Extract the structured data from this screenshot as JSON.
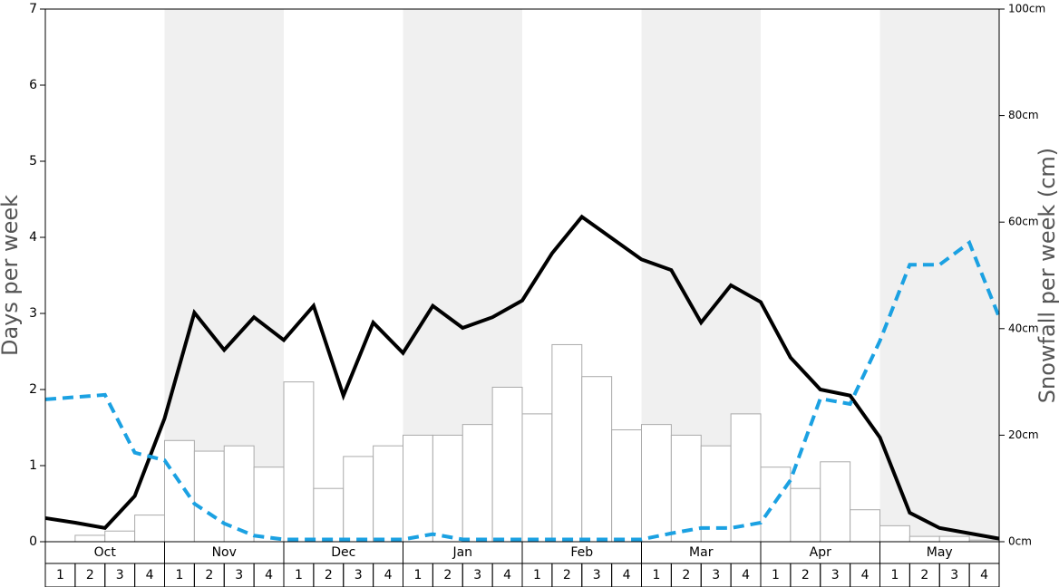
{
  "chart_data": {
    "type": "bar",
    "ylabel": "Days per week",
    "y2label": "Snowfall per week (cm)",
    "months": [
      "Oct",
      "Nov",
      "Dec",
      "Jan",
      "Feb",
      "Mar",
      "Apr",
      "May"
    ],
    "weeks": [
      "1",
      "2",
      "3",
      "4"
    ],
    "ylim": [
      0,
      7
    ],
    "yticks": [
      0,
      1,
      2,
      3,
      4,
      5,
      6,
      7
    ],
    "y2lim": [
      0,
      100
    ],
    "y2ticks": [
      {
        "value": 0,
        "label": "0cm"
      },
      {
        "value": 20,
        "label": "20cm"
      },
      {
        "value": 40,
        "label": "40cm"
      },
      {
        "value": 60,
        "label": "60cm"
      },
      {
        "value": 80,
        "label": "80cm"
      },
      {
        "value": 100,
        "label": "100cm"
      }
    ],
    "xlim": [
      0,
      32
    ],
    "series": [
      {
        "type": "bar",
        "axis": "y2",
        "color": "#ffffff",
        "values": [
          0,
          1.2,
          2,
          5,
          19,
          17,
          18,
          14,
          30,
          10,
          16,
          18,
          20,
          20,
          22,
          29,
          24,
          37,
          31,
          21,
          22,
          20,
          18,
          24,
          14,
          10,
          15,
          6,
          3,
          1,
          1,
          0.3
        ]
      },
      {
        "type": "line",
        "color": "#000000",
        "dashed": false,
        "x": [
          0,
          1,
          2,
          3,
          4,
          5,
          6,
          7,
          8,
          9,
          10,
          11,
          12,
          13,
          14,
          15,
          16,
          17,
          18,
          19,
          20,
          21,
          22,
          23,
          24,
          25,
          26,
          27,
          28,
          29,
          30,
          31,
          32
        ],
        "values": [
          0.31,
          0.25,
          0.18,
          0.6,
          1.62,
          3.01,
          2.52,
          2.95,
          2.65,
          3.1,
          1.92,
          2.88,
          2.48,
          3.1,
          2.81,
          2.95,
          3.17,
          3.79,
          4.27,
          3.99,
          3.71,
          3.57,
          2.88,
          3.37,
          3.15,
          2.42,
          2.0,
          1.92,
          1.37,
          0.38,
          0.18,
          0.11,
          0.04
        ]
      },
      {
        "type": "line",
        "color": "#1ba1e2",
        "dashed": true,
        "x": [
          0,
          1,
          2,
          3,
          4,
          5,
          6,
          7,
          8,
          9,
          10,
          11,
          12,
          13,
          14,
          15,
          16,
          17,
          18,
          19,
          20,
          21,
          22,
          23,
          24,
          25,
          26,
          27,
          28,
          29,
          30,
          31,
          32
        ],
        "values": [
          1.87,
          1.9,
          1.93,
          1.17,
          1.07,
          0.5,
          0.24,
          0.08,
          0.03,
          0.03,
          0.03,
          0.03,
          0.03,
          0.1,
          0.03,
          0.03,
          0.03,
          0.03,
          0.03,
          0.03,
          0.03,
          0.11,
          0.18,
          0.18,
          0.25,
          0.81,
          1.88,
          1.81,
          2.64,
          3.64,
          3.64,
          3.93,
          2.95
        ]
      }
    ]
  }
}
